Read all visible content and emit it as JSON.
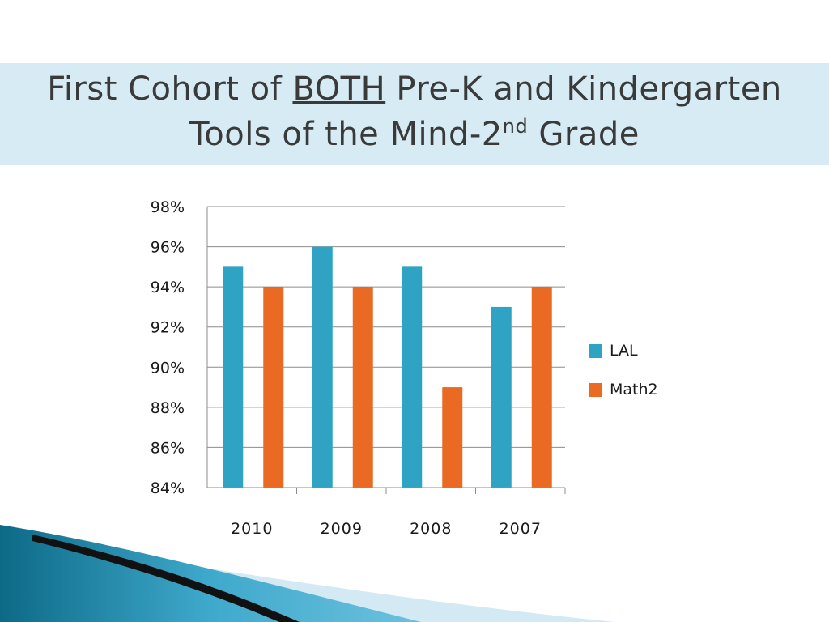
{
  "slide": {
    "title_part1": "First Cohort of ",
    "title_underlined": "BOTH",
    "title_part2": " Pre-K and Kindergarten",
    "title_line2_part1": "Tools of the Mind-2",
    "title_line2_sup": "nd",
    "title_line2_part2": " Grade"
  },
  "chart_data": {
    "type": "bar",
    "title": "",
    "xlabel": "",
    "ylabel": "",
    "categories": [
      "2010",
      "2009",
      "2008",
      "2007"
    ],
    "series": [
      {
        "name": "LAL",
        "values": [
          95,
          96,
          95,
          93
        ],
        "color": "#2fa3c3"
      },
      {
        "name": "Math2",
        "values": [
          94,
          94,
          89,
          94
        ],
        "color": "#ea6a23"
      }
    ],
    "ylim": [
      84,
      98
    ],
    "yticks": [
      84,
      86,
      88,
      90,
      92,
      94,
      96,
      98
    ],
    "ytick_format": "%",
    "grid": true,
    "legend_position": "right"
  },
  "colors": {
    "title_band": "#d6ebf4",
    "gridline": "#8c8c8c",
    "swoosh_dark": "#0f6f8c",
    "swoosh_light": "#cfe7f2"
  }
}
